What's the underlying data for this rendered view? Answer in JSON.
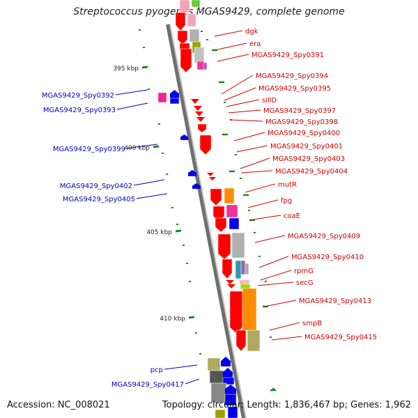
{
  "title": "Streptococcus pyogenes MGAS9429, complete genome",
  "accession": "Accession: NC_008021",
  "topology": "Topology: circular; Length: 1,836,467 bp; Genes: 1,962",
  "colors": {
    "label_red": "#cc0000",
    "label_blue": "#0000bb",
    "tick": "#1a8a1a",
    "backbone": "#8a8a8a"
  },
  "ticks": [
    "395 kbp",
    "400 kbp",
    "405 kbp",
    "410 kbp"
  ],
  "right_labels": [
    "dgk",
    "era",
    "MGAS9429_Spy0391",
    "MGAS9429_Spy0394",
    "MGAS9429_Spy0395",
    "sillD",
    "MGAS9429_Spy0397",
    "MGAS9429_Spy0398",
    "MGAS9429_Spy0400",
    "MGAS9429_Spy0401",
    "MGAS9429_Spy0403",
    "MGAS9429_Spy0404",
    "mutR",
    "fpg",
    "coaE",
    "MGAS9429_Spy0409",
    "MGAS9429_Spy0410",
    "rpmG",
    "secG",
    "MGAS9429_Spy0413",
    "smpB",
    "MGAS9429_Spy0415"
  ],
  "left_labels": [
    "MGAS9429_Spy0392",
    "MGAS9429_Spy0393",
    "MGAS9429_Spy0399",
    "MGAS9429_Spy0402",
    "MGAS9429_Spy0405",
    "pcp",
    "MGAS9429_Spy0417"
  ]
}
